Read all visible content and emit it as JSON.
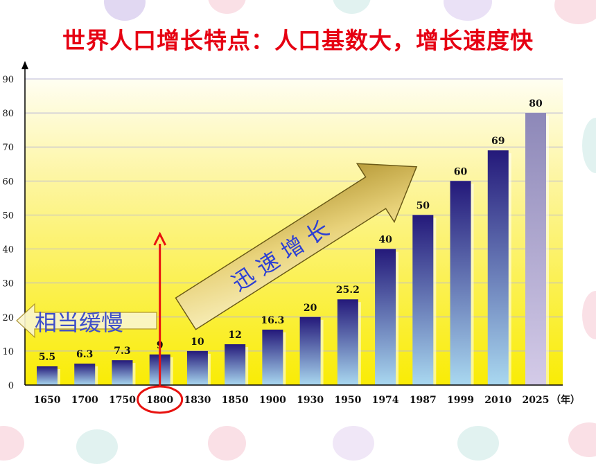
{
  "title": "世界人口增长特点：人口基数大，增长速度快",
  "chart_data": {
    "type": "bar",
    "categories": [
      "1650",
      "1700",
      "1750",
      "1800",
      "1830",
      "1850",
      "1900",
      "1930",
      "1950",
      "1974",
      "1987",
      "1999",
      "2010",
      "2025"
    ],
    "values": [
      5.5,
      6.3,
      7.3,
      9,
      10,
      12,
      16.3,
      20,
      25.2,
      40,
      50,
      60,
      69,
      80
    ],
    "value_labels": [
      "5.5",
      "6.3",
      "7.3",
      "9",
      "10",
      "12",
      "16.3",
      "20",
      "25.2",
      "40",
      "50",
      "60",
      "69",
      "80"
    ],
    "x_unit": "（年）",
    "yticks": [
      "0",
      "10",
      "20",
      "30",
      "40",
      "50",
      "60",
      "70",
      "80",
      "90"
    ],
    "ylim": [
      0,
      90
    ],
    "highlighted_category": "1800",
    "annotations": {
      "slow": "相当缓慢",
      "fast": "迅 速 增 长"
    },
    "colors": {
      "bar_top": "#24197a",
      "bar_bottom": "#a9d8f0",
      "forecast_top": "#8d88b8",
      "forecast_bottom": "#d4cbe8",
      "highlight": "#e8120f",
      "title": "#e60012"
    }
  }
}
